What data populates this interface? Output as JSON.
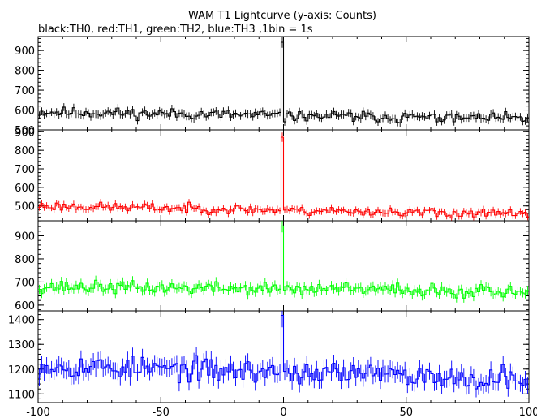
{
  "title": "WAM T1 Lightcurve (y-axis: Counts)",
  "subtitle": "black:TH0, red:TH1, green:TH2, blue:TH3 ,1bin = 1s",
  "chart_data": {
    "type": "line",
    "title": "WAM T1 Lightcurve (y-axis: Counts)",
    "subtitle": "black:TH0, red:TH1, green:TH2, blue:TH3 ,1bin = 1s",
    "xlim": [
      -100,
      100
    ],
    "x_ticks": [
      -100,
      -50,
      0,
      50,
      100
    ],
    "x_tick_labels": [
      "-100",
      "-50",
      "0",
      "50",
      "100"
    ],
    "panels": [
      {
        "name": "TH0",
        "color": "#000000",
        "ylim": [
          500,
          970
        ],
        "yticks": [
          500,
          600,
          700,
          800,
          900
        ],
        "ytick_labels": [
          "500",
          "600",
          "700",
          "800",
          "900"
        ],
        "baseline_start": 590,
        "baseline_end": 555,
        "noise": 22,
        "peak": 950,
        "seed": 11
      },
      {
        "name": "TH1",
        "color": "#ff0000",
        "ylim": [
          420,
          910
        ],
        "yticks": [
          500,
          600,
          700,
          800,
          900
        ],
        "ytick_labels": [
          "500",
          "600",
          "700",
          "800",
          "900"
        ],
        "baseline_start": 500,
        "baseline_end": 455,
        "noise": 20,
        "peak": 880,
        "seed": 23
      },
      {
        "name": "TH2",
        "color": "#00ff00",
        "ylim": [
          575,
          965
        ],
        "yticks": [
          600,
          700,
          800,
          900
        ],
        "ytick_labels": [
          "600",
          "700",
          "800",
          "900"
        ],
        "baseline_start": 680,
        "baseline_end": 660,
        "noise": 22,
        "peak": 955,
        "seed": 37
      },
      {
        "name": "TH3",
        "color": "#0000ff",
        "ylim": [
          1065,
          1435
        ],
        "yticks": [
          1100,
          1200,
          1300,
          1400
        ],
        "ytick_labels": [
          "1100",
          "1200",
          "1300",
          "1400"
        ],
        "baseline_start": 1215,
        "baseline_end": 1160,
        "noise": 38,
        "peak": 1420,
        "seed": 53
      }
    ],
    "burst_x": [
      -1.5,
      -0.5
    ],
    "grid": false
  }
}
